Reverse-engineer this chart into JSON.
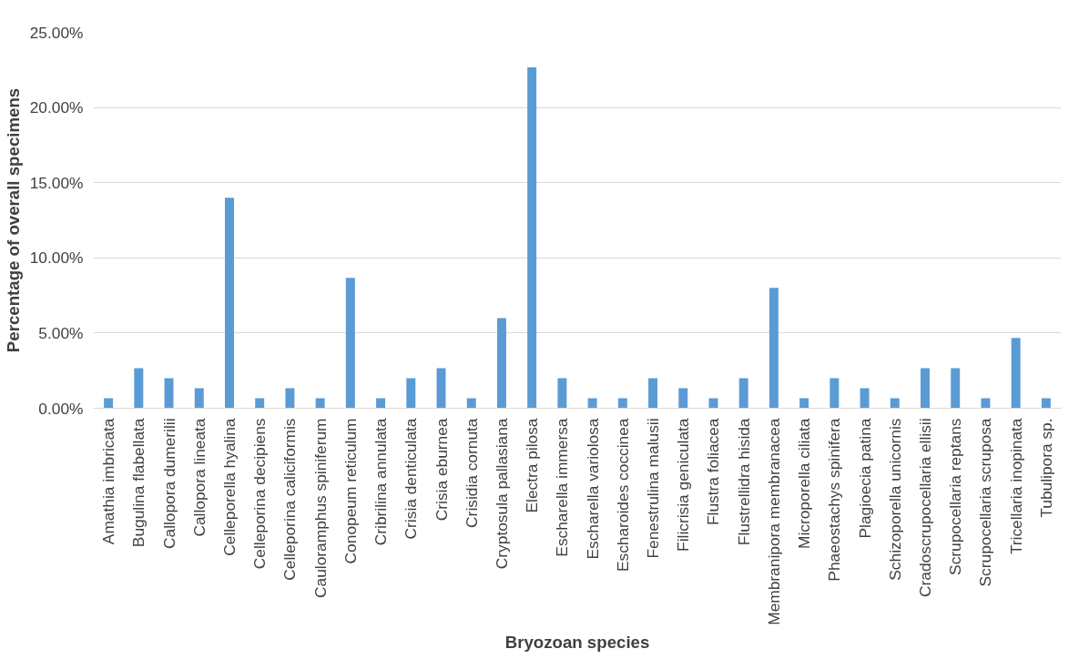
{
  "chart_data": {
    "type": "bar",
    "xlabel": "Bryozoan species",
    "ylabel": "Percentage of overall specimens",
    "categories": [
      "Amathia imbricata",
      "Bugulina flabellata",
      "Callopora dumerilii",
      "Callopora lineata",
      "Celleporella hyalina",
      "Celleporina decipiens",
      "Celleporina caliciformis",
      "Cauloramphus spiniferum",
      "Conopeum reticulum",
      "Cribrilina annulata",
      "Crisia denticulata",
      "Crisia eburnea",
      "Crisidia cornuta",
      "Cryptosula pallasiana",
      "Electra pilosa",
      "Escharella immersa",
      "Escharella variolosa",
      "Escharoides coccinea",
      "Fenestrulina malusii",
      "Filicrisia geniculata",
      "Flustra foliacea",
      "Flustrellidra hisida",
      "Membranipora membranacea",
      "Microporella ciliata",
      "Phaeostachys spinifera",
      "Plagioecia patina",
      "Schizoporella unicornis",
      "Cradoscrupocellaria ellisii",
      "Scrupocellaria reptans",
      "Scrupocellaria scruposa",
      "Tricellaria inopinata",
      "Tubulipora sp."
    ],
    "values": [
      0.67,
      2.67,
      2.0,
      1.33,
      14.0,
      0.67,
      1.33,
      0.67,
      8.67,
      0.67,
      2.0,
      2.67,
      0.67,
      6.0,
      22.67,
      2.0,
      0.67,
      0.67,
      2.0,
      1.33,
      0.67,
      2.0,
      8.0,
      0.67,
      2.0,
      1.33,
      0.67,
      2.67,
      2.67,
      0.67,
      4.67,
      0.67
    ],
    "color": "#5b9bd5",
    "ylim": [
      0,
      25
    ],
    "yticks": [
      {
        "value": 0,
        "label": "0.00%"
      },
      {
        "value": 5,
        "label": "5.00%"
      },
      {
        "value": 10,
        "label": "10.00%"
      },
      {
        "value": 15,
        "label": "15.00%"
      },
      {
        "value": 20,
        "label": "20.00%"
      },
      {
        "value": 25,
        "label": "25.00%"
      }
    ],
    "grid": "y"
  }
}
